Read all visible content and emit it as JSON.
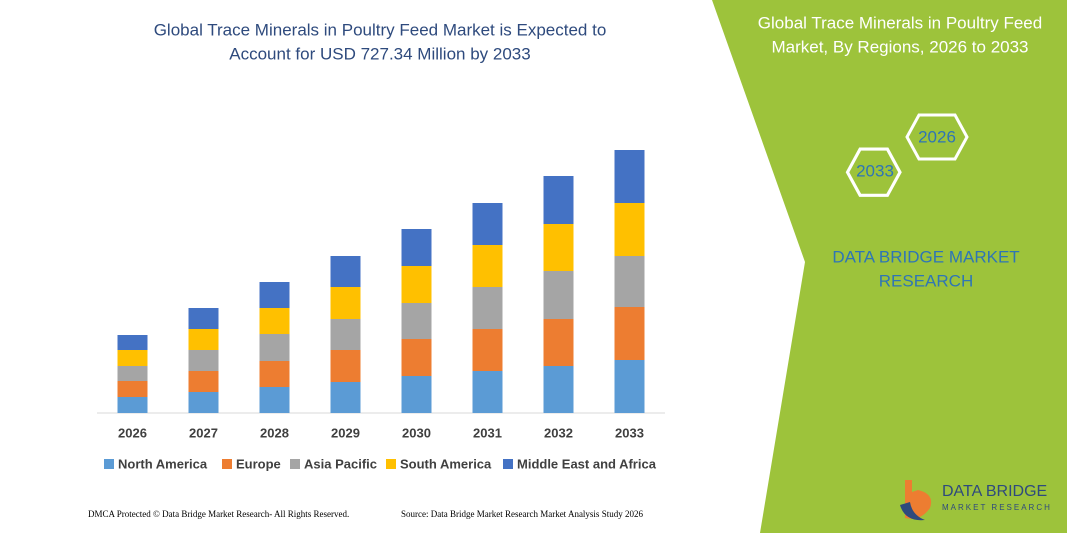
{
  "chart_data": {
    "type": "stacked-bar",
    "title": [
      "Global Trace Minerals in Poultry Feed Market is Expected to",
      "Account for USD 727.34 Million by 2033"
    ],
    "categories": [
      "2026",
      "2027",
      "2028",
      "2029",
      "2030",
      "2031",
      "2032",
      "2033"
    ],
    "series": [
      {
        "name": "North America",
        "color": "#5b9bd5",
        "values": [
          16,
          21,
          26,
          31,
          37,
          42,
          47,
          53
        ]
      },
      {
        "name": "Europe",
        "color": "#ed7d31",
        "values": [
          16,
          21,
          26,
          32,
          37,
          42,
          47,
          53
        ]
      },
      {
        "name": "Asia Pacific",
        "color": "#a5a5a5",
        "values": [
          15,
          21,
          27,
          31,
          36,
          42,
          48,
          51
        ]
      },
      {
        "name": "South America",
        "color": "#ffc000",
        "values": [
          16,
          21,
          26,
          32,
          37,
          42,
          47,
          53
        ]
      },
      {
        "name": "Middle East and Africa",
        "color": "#4472c4",
        "values": [
          15,
          21,
          26,
          31,
          37,
          42,
          48,
          53
        ]
      }
    ],
    "ylim": [
      0,
      280
    ]
  },
  "panel": {
    "title": [
      "Global Trace Minerals in Poultry Feed",
      "Market, By Regions, 2026 to 2033"
    ],
    "hex_labels": [
      "2026",
      "2033"
    ],
    "brand": [
      "DATA BRIDGE MARKET",
      "RESEARCH"
    ],
    "logo": [
      "DATA BRIDGE",
      "MARKET RESEARCH"
    ]
  },
  "footer": {
    "left": "DMCA Protected © Data Bridge Market Research- All Rights Reserved.",
    "right": "Source: Data Bridge Market Research Market Analysis Study 2026"
  }
}
